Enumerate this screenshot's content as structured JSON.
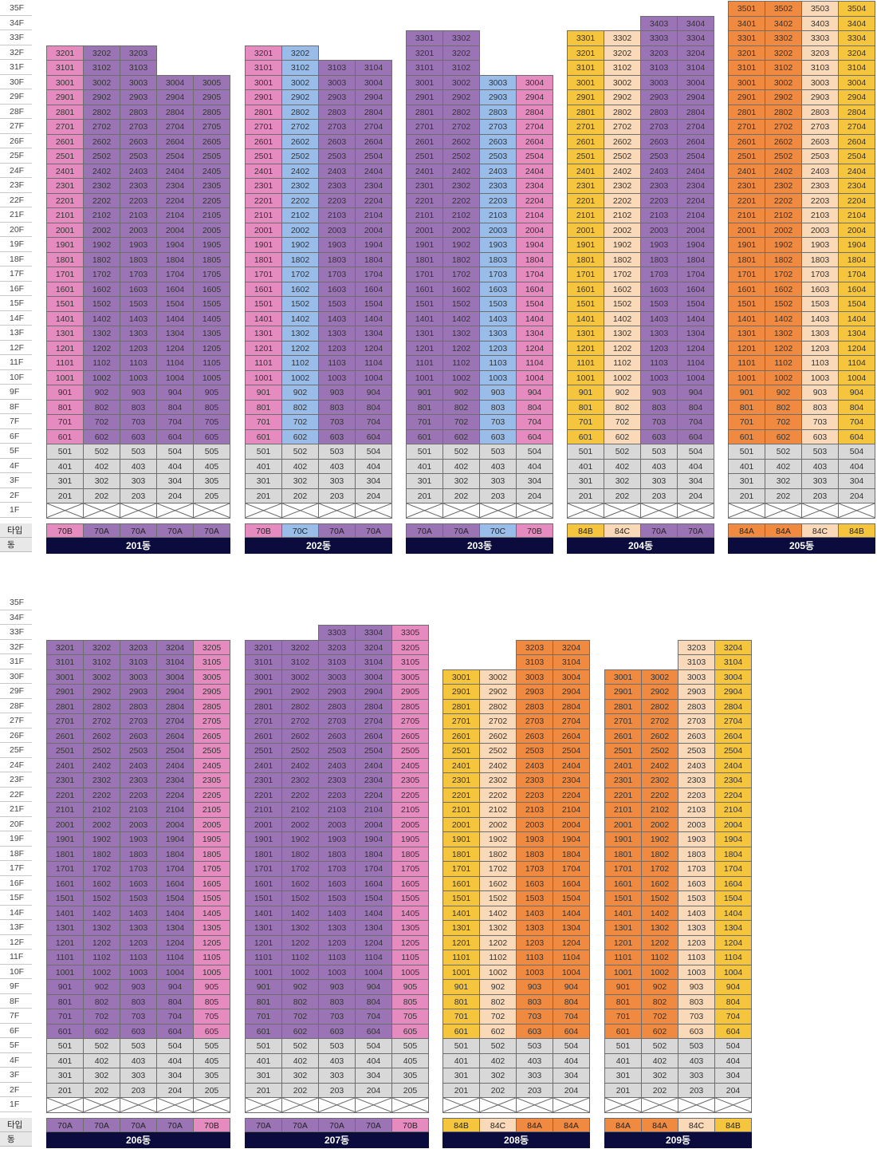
{
  "colors": {
    "70A": "#9b74b5",
    "70B": "#e68bc0",
    "70C": "#99bde8",
    "84A": "#ef8a40",
    "84B": "#f6c53e",
    "84C": "#fad9b9",
    "commercial": "#d8d8d8",
    "dong_bar": "#0b0c3d"
  },
  "type_row_label": "타입",
  "dong_row_label": "동",
  "charts": [
    {
      "max_floor": 35,
      "floor_labels": [
        "35F",
        "34F",
        "33F",
        "32F",
        "31F",
        "30F",
        "29F",
        "28F",
        "27F",
        "26F",
        "25F",
        "24F",
        "23F",
        "22F",
        "21F",
        "20F",
        "19F",
        "18F",
        "17F",
        "16F",
        "15F",
        "14F",
        "13F",
        "12F",
        "11F",
        "10F",
        "9F",
        "8F",
        "7F",
        "6F",
        "5F",
        "4F",
        "3F",
        "2F",
        "1F"
      ],
      "buildings": [
        {
          "name": "201동",
          "types": [
            "70B",
            "70A",
            "70A",
            "70A",
            "70A"
          ],
          "top_floors": [
            32,
            32,
            32,
            30,
            30
          ]
        },
        {
          "name": "202동",
          "types": [
            "70B",
            "70C",
            "70A",
            "70A"
          ],
          "top_floors": [
            32,
            32,
            31,
            31
          ]
        },
        {
          "name": "203동",
          "types": [
            "70A",
            "70A",
            "70C",
            "70B"
          ],
          "top_floors": [
            33,
            33,
            30,
            30
          ]
        },
        {
          "name": "204동",
          "types": [
            "84B",
            "84C",
            "70A",
            "70A"
          ],
          "top_floors": [
            33,
            33,
            34,
            34
          ]
        },
        {
          "name": "205동",
          "types": [
            "84A",
            "84A",
            "84C",
            "84B"
          ],
          "top_floors": [
            35,
            35,
            35,
            35
          ]
        }
      ]
    },
    {
      "max_floor": 35,
      "floor_labels": [
        "35F",
        "34F",
        "33F",
        "32F",
        "31F",
        "30F",
        "29F",
        "28F",
        "27F",
        "26F",
        "25F",
        "24F",
        "23F",
        "22F",
        "21F",
        "20F",
        "19F",
        "18F",
        "17F",
        "16F",
        "15F",
        "14F",
        "13F",
        "12F",
        "11F",
        "10F",
        "9F",
        "8F",
        "7F",
        "6F",
        "5F",
        "4F",
        "3F",
        "2F",
        "1F"
      ],
      "buildings": [
        {
          "name": "206동",
          "types": [
            "70A",
            "70A",
            "70A",
            "70A",
            "70B"
          ],
          "top_floors": [
            32,
            32,
            32,
            32,
            32
          ]
        },
        {
          "name": "207동",
          "types": [
            "70A",
            "70A",
            "70A",
            "70A",
            "70B"
          ],
          "top_floors": [
            32,
            32,
            33,
            33,
            33
          ]
        },
        {
          "name": "208동",
          "types": [
            "84B",
            "84C",
            "84A",
            "84A"
          ],
          "top_floors": [
            30,
            30,
            32,
            32
          ]
        },
        {
          "name": "209동",
          "types": [
            "84A",
            "84A",
            "84C",
            "84B"
          ],
          "top_floors": [
            30,
            30,
            32,
            32
          ]
        }
      ]
    }
  ]
}
